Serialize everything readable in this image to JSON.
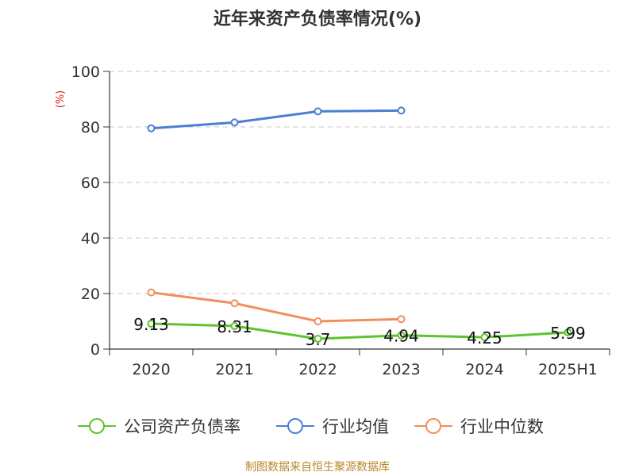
{
  "chart_data": {
    "type": "line",
    "title": "近年来资产负债率情况(%)",
    "ylabel": "(%)",
    "xlabel": "",
    "categories": [
      "2020",
      "2021",
      "2022",
      "2023",
      "2024",
      "2025H1"
    ],
    "ylim": [
      0,
      100
    ],
    "yticks": [
      "0",
      "20",
      "40",
      "60",
      "80",
      "100"
    ],
    "grid": true,
    "legend_position": "bottom",
    "series": [
      {
        "name": "公司资产负债率",
        "color": "#5cc42c",
        "values": [
          9.13,
          8.31,
          3.7,
          4.94,
          4.25,
          5.99
        ],
        "labels": [
          "9.13",
          "8.31",
          "3.7",
          "4.94",
          "4.25",
          "5.99"
        ]
      },
      {
        "name": "行业均值",
        "color": "#4a7fd6",
        "values": [
          79.5,
          81.6,
          85.6,
          85.9,
          null,
          null
        ]
      },
      {
        "name": "行业中位数",
        "color": "#f28e5c",
        "values": [
          20.4,
          16.5,
          10.0,
          10.8,
          null,
          null
        ]
      }
    ]
  },
  "source": "制图数据来自恒生聚源数据库"
}
